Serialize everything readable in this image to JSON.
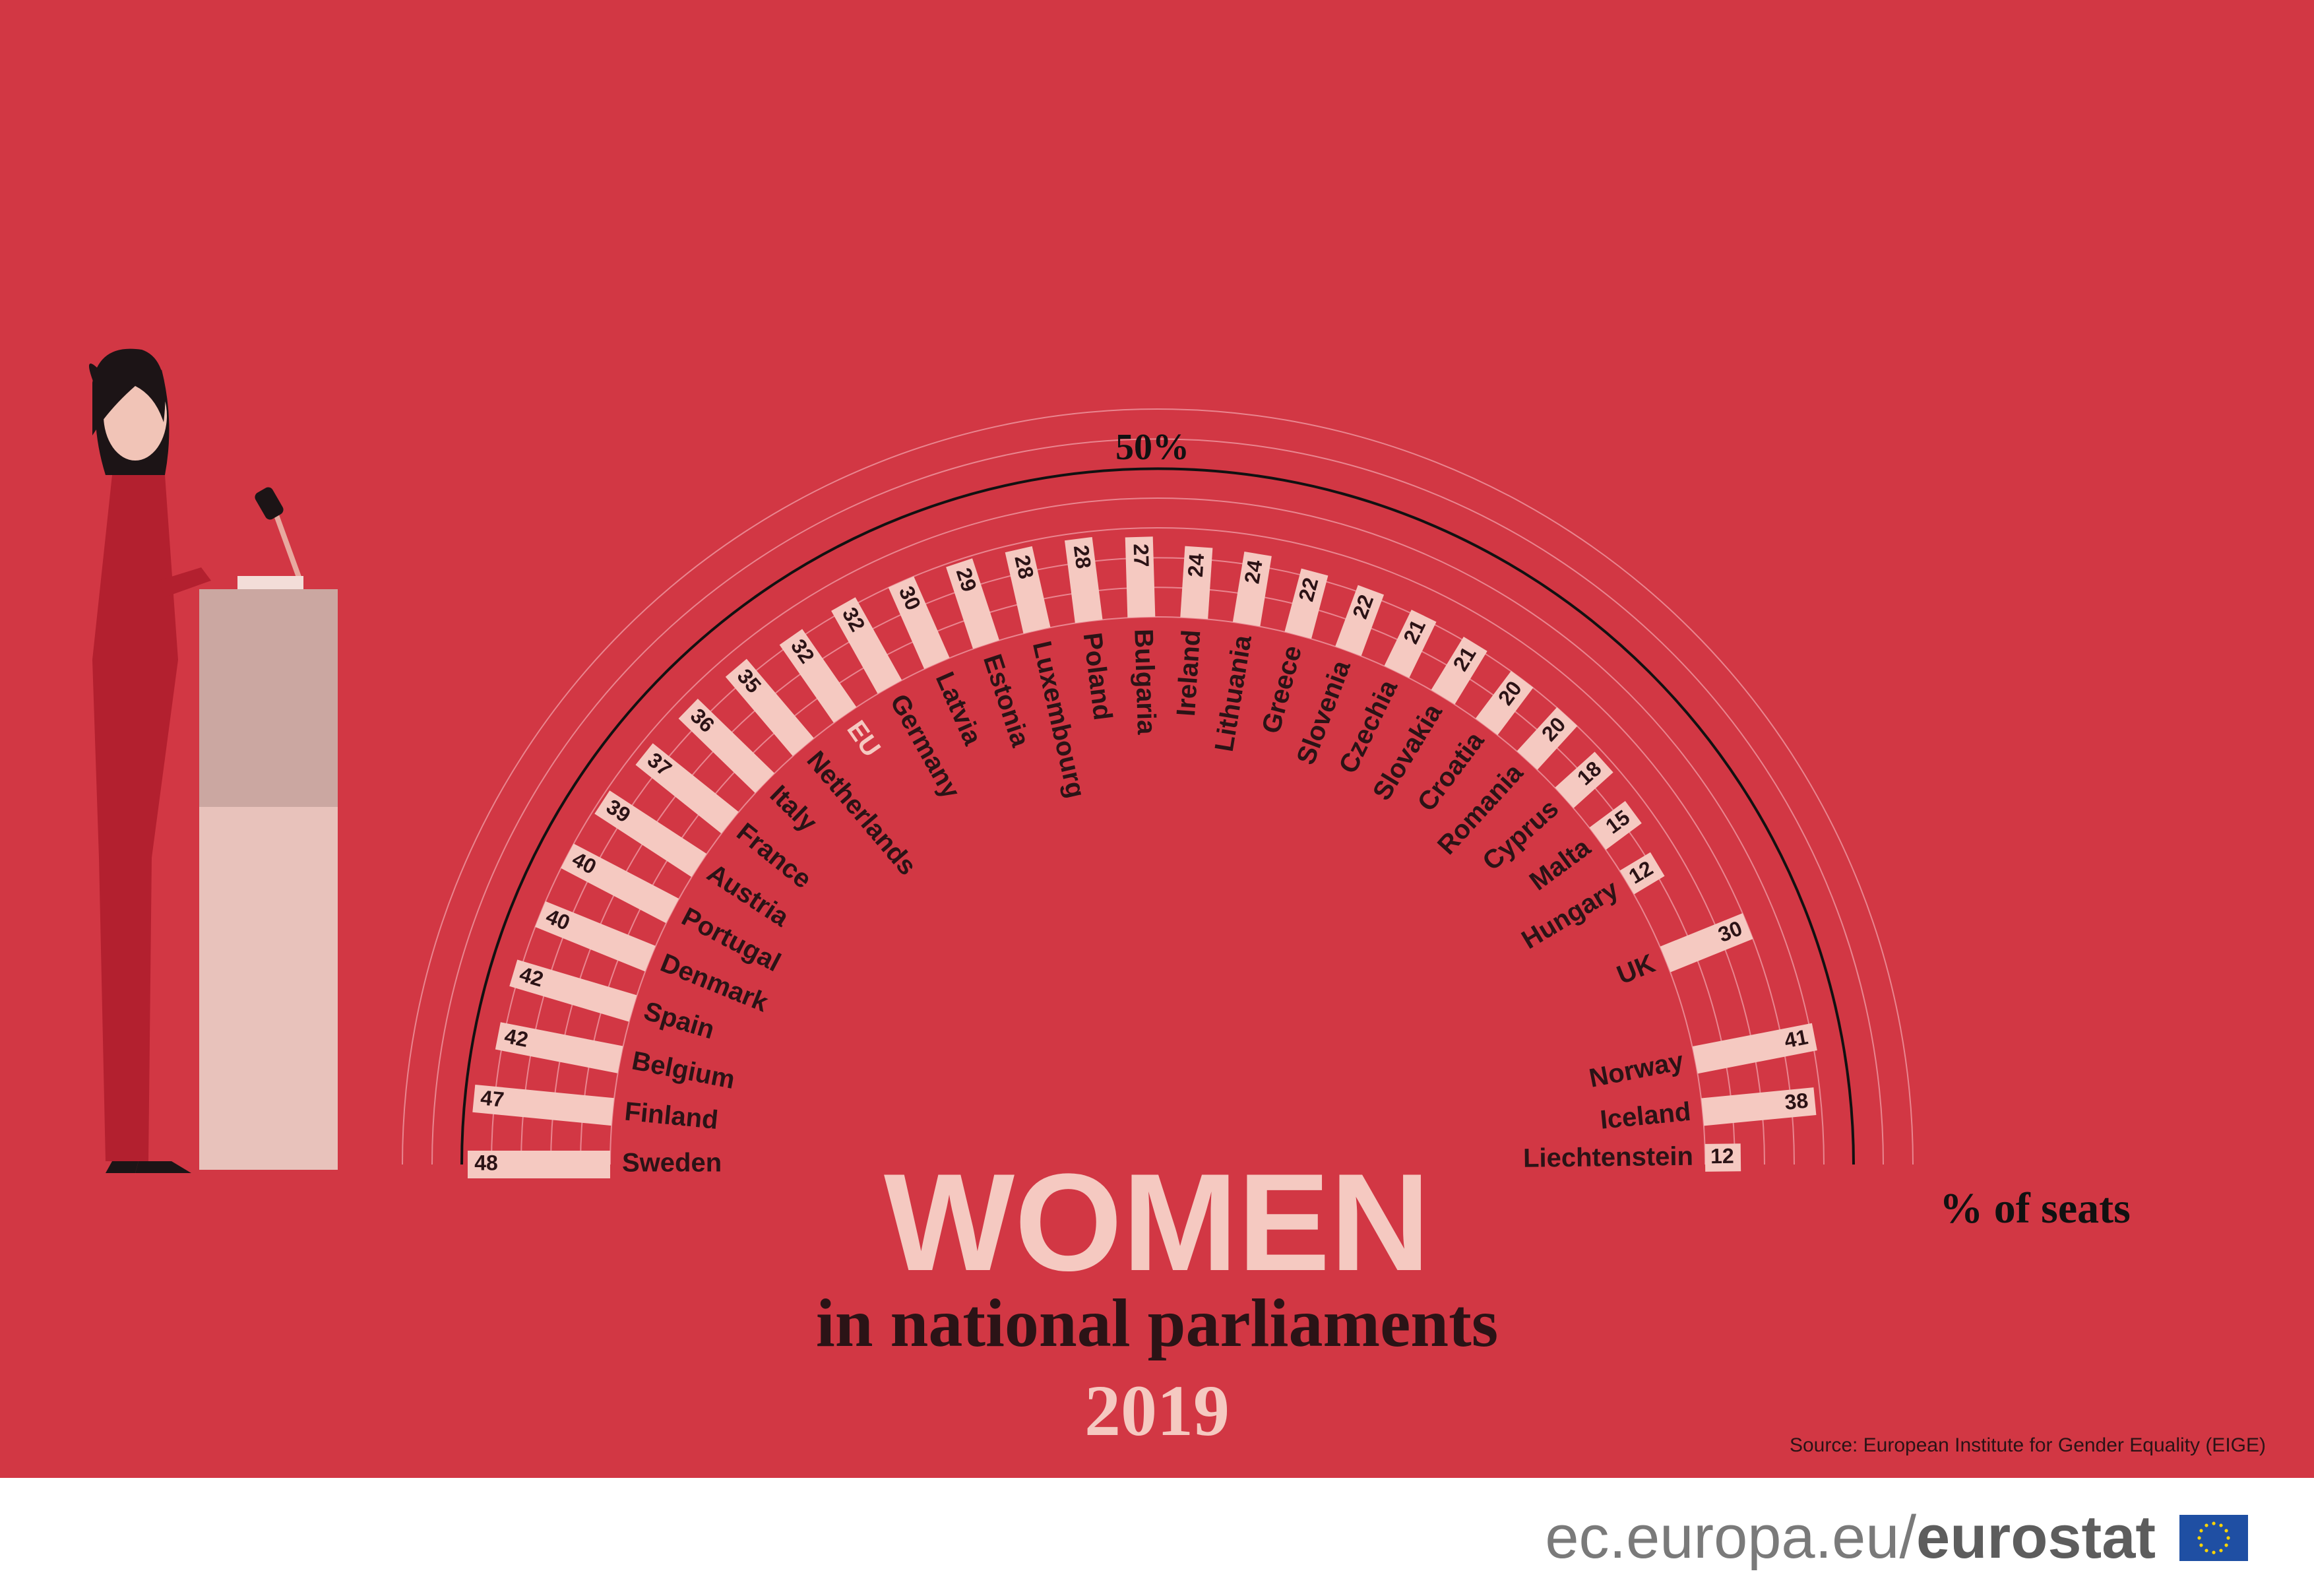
{
  "title": {
    "main": "WOMEN",
    "sub": "in national parliaments",
    "year": "2019"
  },
  "source": "Source: European Institute for Gender Equality (EIGE)",
  "footer": {
    "domain": "ec.europa.eu/",
    "brand": "eurostat"
  },
  "icons": [
    "speaker-at-podium-illustration",
    "eu-flag-icon"
  ],
  "colors": {
    "background": "#d23744",
    "bars": "#f5c9c1",
    "eu_label": "#f5c9c1",
    "text": "#2b1316",
    "rings": "#f0a0a8",
    "fifty_percent_line": "#111111"
  },
  "chart_data": {
    "type": "bar",
    "layout": "radial-semicircle",
    "unit_label": "% of seats",
    "reference_line": {
      "value": 50,
      "label": "50%"
    },
    "ring_max": 70,
    "series": [
      {
        "name": "",
        "categories": [
          "Sweden",
          "Finland",
          "Belgium",
          "Spain",
          "Denmark",
          "Portugal",
          "Austria",
          "France",
          "Italy",
          "Netherlands",
          "EU",
          "Germany",
          "Latvia",
          "Estonia",
          "Luxembourg",
          "Poland",
          "Bulgaria",
          "Ireland",
          "Lithuania",
          "Greece",
          "Slovenia",
          "Czechia",
          "Slovakia",
          "Croatia",
          "Romania",
          "Cyprus",
          "Malta",
          "Hungary"
        ],
        "values": [
          48,
          47,
          42,
          42,
          40,
          40,
          39,
          37,
          36,
          35,
          32,
          32,
          30,
          29,
          28,
          28,
          27,
          24,
          24,
          22,
          22,
          21,
          21,
          20,
          20,
          18,
          15,
          12
        ]
      },
      {
        "name": "",
        "categories": [
          "UK",
          "Norway",
          "Iceland",
          "Liechtenstein"
        ],
        "values": [
          30,
          41,
          38,
          12
        ]
      }
    ]
  }
}
